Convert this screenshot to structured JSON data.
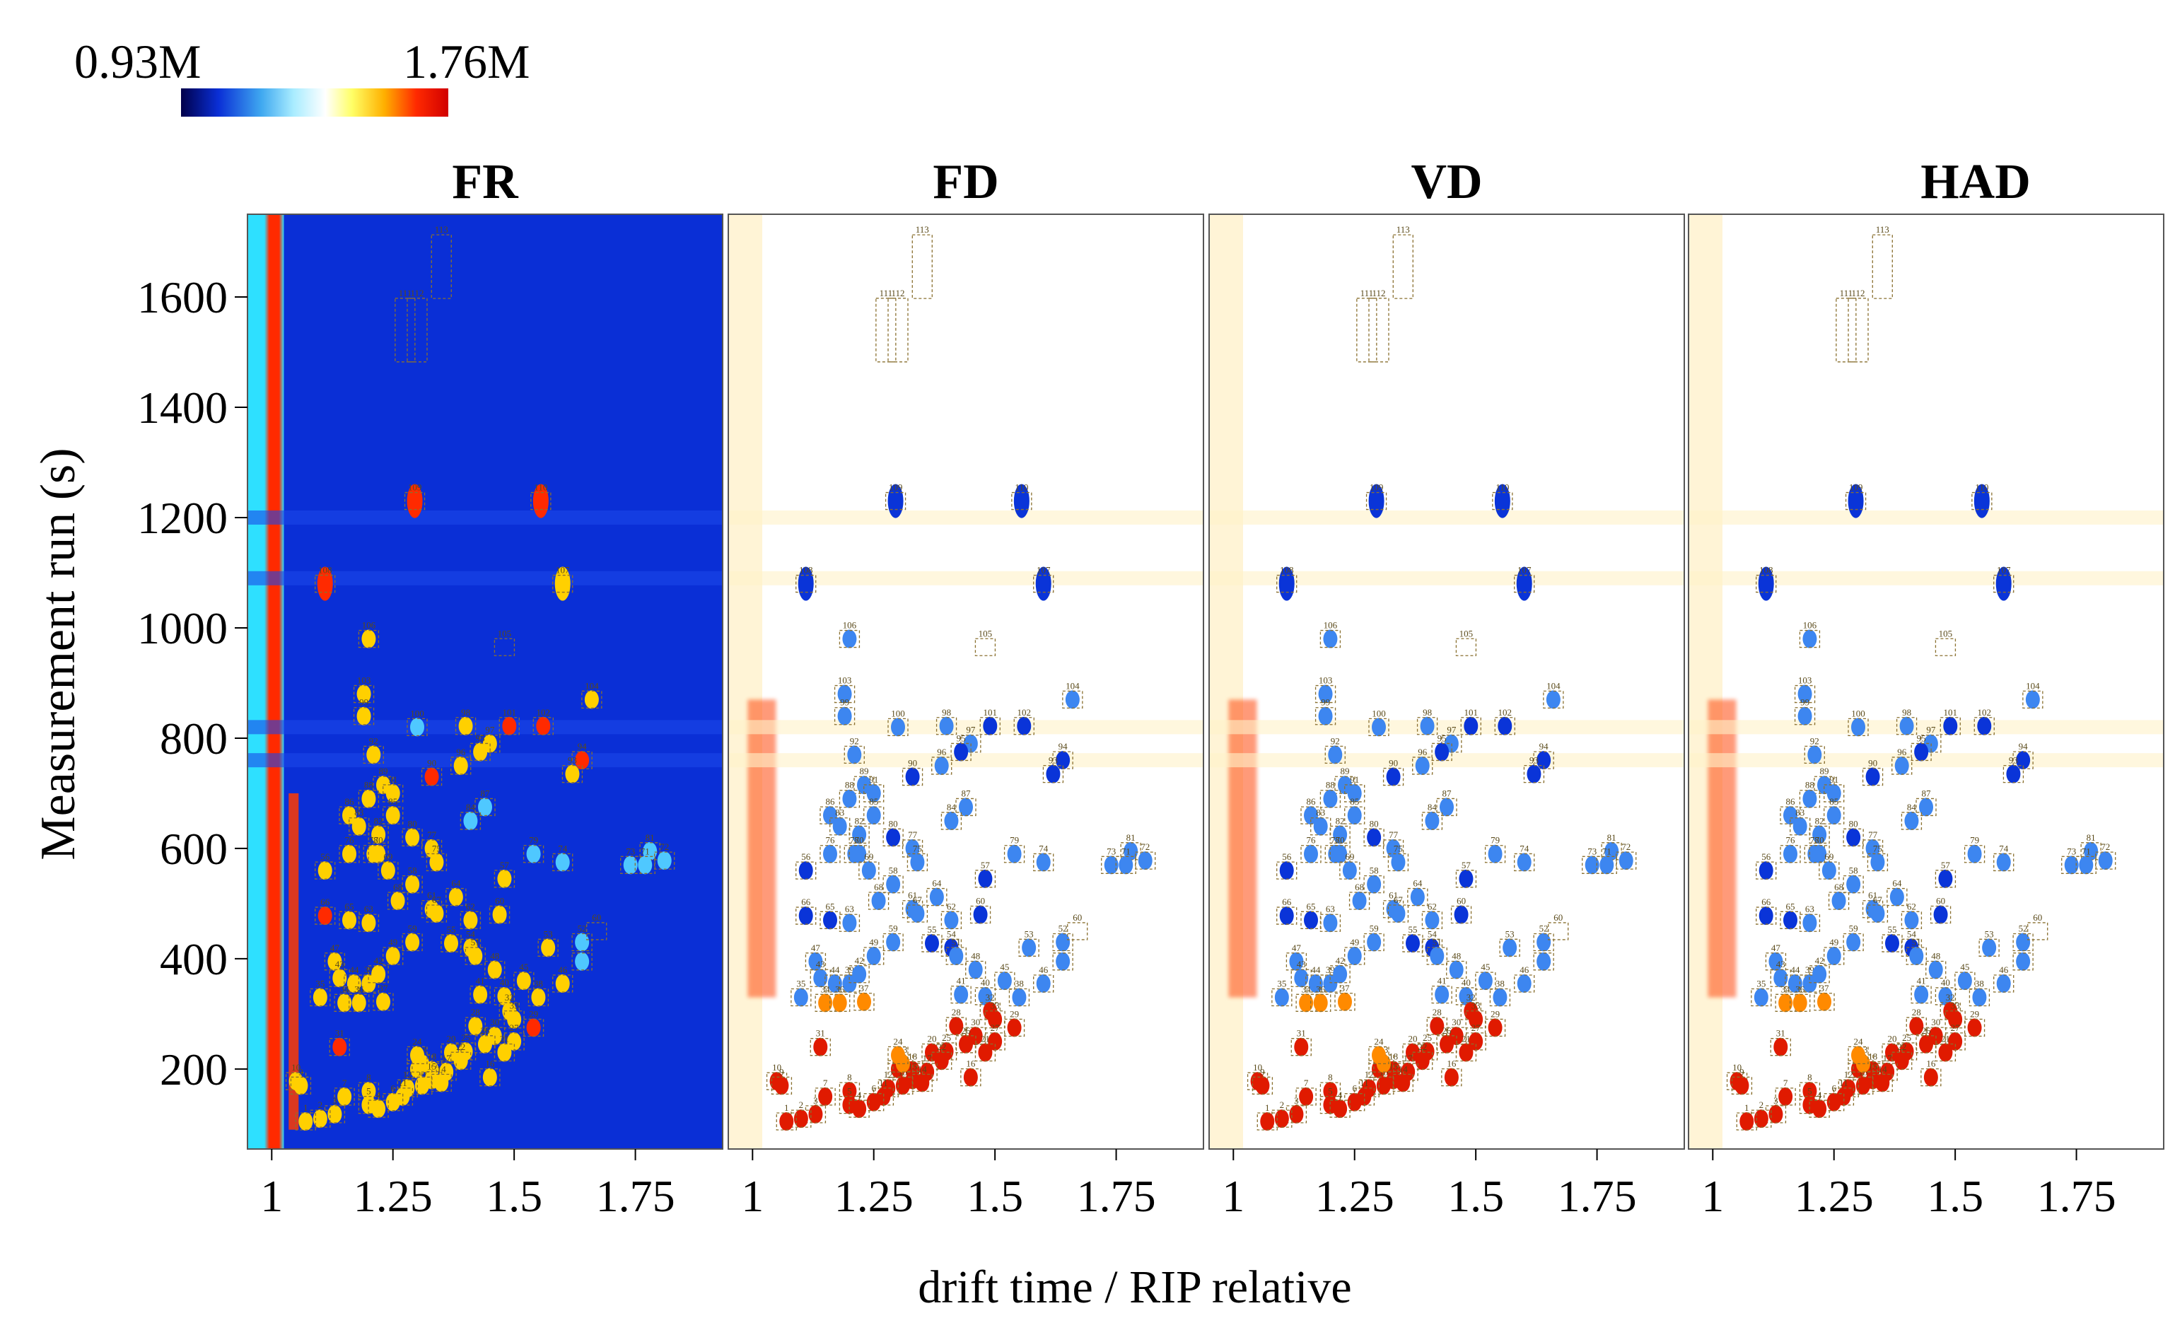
{
  "chart_data": {
    "type": "heatmap",
    "colorbar": {
      "min_label": "0.93M",
      "max_label": "1.76M",
      "colors": [
        "#00004a",
        "#0a2fd6",
        "#3fa8f0",
        "#a8ecff",
        "#ffffff",
        "#ffff66",
        "#ffb000",
        "#ff2a00",
        "#d10000"
      ]
    },
    "ylabel": "Measurement run (s)",
    "xlabel": "drift time / RIP relative",
    "ylim": [
      55,
      1750
    ],
    "xlim": [
      0.95,
      1.93
    ],
    "y_ticks": [
      {
        "value": 200,
        "label": "200"
      },
      {
        "value": 400,
        "label": "400"
      },
      {
        "value": 600,
        "label": "600"
      },
      {
        "value": 800,
        "label": "800"
      },
      {
        "value": 1000,
        "label": "1000"
      },
      {
        "value": 1200,
        "label": "1200"
      },
      {
        "value": 1400,
        "label": "1400"
      },
      {
        "value": 1600,
        "label": "1600"
      }
    ],
    "x_ticks": [
      {
        "value": 1.0,
        "label": "1"
      },
      {
        "value": 1.25,
        "label": "1.25"
      },
      {
        "value": 1.5,
        "label": "1.5"
      },
      {
        "value": 1.75,
        "label": "1.75"
      }
    ],
    "panels": [
      {
        "title": "FR",
        "mode": "absolute",
        "background": "#0a2fd6"
      },
      {
        "title": "FD",
        "mode": "difference",
        "background": "#ffffff"
      },
      {
        "title": "VD",
        "mode": "difference",
        "background": "#ffffff"
      },
      {
        "title": "HAD",
        "mode": "difference",
        "background": "#ffffff"
      }
    ],
    "peaks": [
      {
        "id": "113",
        "x": 1.35,
        "y": 1655,
        "intensity": 0.0
      },
      {
        "id": "111",
        "x": 1.275,
        "y": 1540,
        "intensity": 0.0
      },
      {
        "id": "112",
        "x": 1.3,
        "y": 1540,
        "intensity": 0.0
      },
      {
        "id": "109",
        "x": 1.295,
        "y": 1230,
        "intensity": 1.0
      },
      {
        "id": "110",
        "x": 1.555,
        "y": 1230,
        "intensity": 0.8
      },
      {
        "id": "108",
        "x": 1.11,
        "y": 1080,
        "intensity": 0.9
      },
      {
        "id": "107",
        "x": 1.6,
        "y": 1080,
        "intensity": 0.7
      },
      {
        "id": "106",
        "x": 1.2,
        "y": 980,
        "intensity": 0.6
      },
      {
        "id": "105",
        "x": 1.48,
        "y": 965,
        "intensity": 0.0
      },
      {
        "id": "103",
        "x": 1.19,
        "y": 880,
        "intensity": 0.6
      },
      {
        "id": "104",
        "x": 1.66,
        "y": 870,
        "intensity": 0.6
      },
      {
        "id": "100",
        "x": 1.3,
        "y": 820,
        "intensity": 0.3
      },
      {
        "id": "98",
        "x": 1.4,
        "y": 822,
        "intensity": 0.6
      },
      {
        "id": "101",
        "x": 1.49,
        "y": 822,
        "intensity": 0.9
      },
      {
        "id": "102",
        "x": 1.56,
        "y": 822,
        "intensity": 0.8
      },
      {
        "id": "99",
        "x": 1.19,
        "y": 840,
        "intensity": 0.6
      },
      {
        "id": "97",
        "x": 1.45,
        "y": 790,
        "intensity": 0.5
      },
      {
        "id": "95",
        "x": 1.43,
        "y": 775,
        "intensity": 0.7
      },
      {
        "id": "96",
        "x": 1.39,
        "y": 750,
        "intensity": 0.6
      },
      {
        "id": "94",
        "x": 1.64,
        "y": 760,
        "intensity": 0.95
      },
      {
        "id": "93",
        "x": 1.62,
        "y": 735,
        "intensity": 0.7
      },
      {
        "id": "90",
        "x": 1.33,
        "y": 730,
        "intensity": 0.8
      },
      {
        "id": "92",
        "x": 1.21,
        "y": 770,
        "intensity": 0.6
      },
      {
        "id": "89",
        "x": 1.23,
        "y": 715,
        "intensity": 0.6
      },
      {
        "id": "91",
        "x": 1.25,
        "y": 700,
        "intensity": 0.5
      },
      {
        "id": "88",
        "x": 1.2,
        "y": 690,
        "intensity": 0.6
      },
      {
        "id": "86",
        "x": 1.16,
        "y": 660,
        "intensity": 0.6
      },
      {
        "id": "85",
        "x": 1.25,
        "y": 660,
        "intensity": 0.5
      },
      {
        "id": "87",
        "x": 1.44,
        "y": 675,
        "intensity": 0.4
      },
      {
        "id": "84",
        "x": 1.41,
        "y": 650,
        "intensity": 0.4
      },
      {
        "id": "83",
        "x": 1.18,
        "y": 640,
        "intensity": 0.5
      },
      {
        "id": "82",
        "x": 1.22,
        "y": 625,
        "intensity": 0.5
      },
      {
        "id": "56",
        "x": 1.11,
        "y": 560,
        "intensity": 0.7
      },
      {
        "id": "80",
        "x": 1.29,
        "y": 620,
        "intensity": 0.7
      },
      {
        "id": "77",
        "x": 1.33,
        "y": 600,
        "intensity": 0.5
      },
      {
        "id": "76",
        "x": 1.16,
        "y": 590,
        "intensity": 0.5
      },
      {
        "id": "78",
        "x": 1.21,
        "y": 590,
        "intensity": 0.5
      },
      {
        "id": "75",
        "x": 1.34,
        "y": 575,
        "intensity": 0.5
      },
      {
        "id": "57",
        "x": 1.48,
        "y": 545,
        "intensity": 0.7
      },
      {
        "id": "79",
        "x": 1.54,
        "y": 590,
        "intensity": 0.4
      },
      {
        "id": "74",
        "x": 1.6,
        "y": 575,
        "intensity": 0.4
      },
      {
        "id": "81",
        "x": 1.78,
        "y": 595,
        "intensity": 0.4
      },
      {
        "id": "73",
        "x": 1.74,
        "y": 570,
        "intensity": 0.4
      },
      {
        "id": "71",
        "x": 1.77,
        "y": 570,
        "intensity": 0.4
      },
      {
        "id": "72",
        "x": 1.81,
        "y": 578,
        "intensity": 0.4
      },
      {
        "id": "58",
        "x": 1.29,
        "y": 535,
        "intensity": 0.6
      },
      {
        "id": "68",
        "x": 1.26,
        "y": 505,
        "intensity": 0.6
      },
      {
        "id": "64",
        "x": 1.38,
        "y": 512,
        "intensity": 0.6
      },
      {
        "id": "70",
        "x": 1.22,
        "y": 590,
        "intensity": 0.5
      },
      {
        "id": "69",
        "x": 1.24,
        "y": 560,
        "intensity": 0.5
      },
      {
        "id": "61",
        "x": 1.33,
        "y": 490,
        "intensity": 0.6
      },
      {
        "id": "62",
        "x": 1.41,
        "y": 470,
        "intensity": 0.6
      },
      {
        "id": "60",
        "x": 1.47,
        "y": 480,
        "intensity": 0.7
      },
      {
        "id": "66",
        "x": 1.11,
        "y": 478,
        "intensity": 0.8
      },
      {
        "id": "65",
        "x": 1.16,
        "y": 470,
        "intensity": 0.7
      },
      {
        "id": "63",
        "x": 1.2,
        "y": 465,
        "intensity": 0.6
      },
      {
        "id": "59",
        "x": 1.29,
        "y": 430,
        "intensity": 0.6
      },
      {
        "id": "55",
        "x": 1.37,
        "y": 428,
        "intensity": 0.7
      },
      {
        "id": "54",
        "x": 1.41,
        "y": 420,
        "intensity": 0.7
      },
      {
        "id": "51",
        "x": 1.42,
        "y": 405,
        "intensity": 0.6
      },
      {
        "id": "53",
        "x": 1.57,
        "y": 420,
        "intensity": 0.6
      },
      {
        "id": "50",
        "x": 1.64,
        "y": 395,
        "intensity": 0.4
      },
      {
        "id": "52",
        "x": 1.64,
        "y": 430,
        "intensity": 0.4
      },
      {
        "id": "60b",
        "x": 1.67,
        "y": 450,
        "intensity": 0.0
      },
      {
        "id": "49",
        "x": 1.25,
        "y": 405,
        "intensity": 0.6
      },
      {
        "id": "47",
        "x": 1.13,
        "y": 395,
        "intensity": 0.6
      },
      {
        "id": "48",
        "x": 1.46,
        "y": 380,
        "intensity": 0.6
      },
      {
        "id": "43",
        "x": 1.14,
        "y": 365,
        "intensity": 0.5
      },
      {
        "id": "44",
        "x": 1.17,
        "y": 355,
        "intensity": 0.5
      },
      {
        "id": "39",
        "x": 1.2,
        "y": 355,
        "intensity": 0.5
      },
      {
        "id": "45",
        "x": 1.52,
        "y": 360,
        "intensity": 0.5
      },
      {
        "id": "46",
        "x": 1.6,
        "y": 355,
        "intensity": 0.5
      },
      {
        "id": "41",
        "x": 1.43,
        "y": 335,
        "intensity": 0.6
      },
      {
        "id": "40",
        "x": 1.48,
        "y": 332,
        "intensity": 0.6
      },
      {
        "id": "38",
        "x": 1.55,
        "y": 330,
        "intensity": 0.6
      },
      {
        "id": "35",
        "x": 1.1,
        "y": 330,
        "intensity": 0.5
      },
      {
        "id": "34",
        "x": 1.15,
        "y": 320,
        "intensity": 0.5
      },
      {
        "id": "37",
        "x": 1.23,
        "y": 322,
        "intensity": 0.5
      },
      {
        "id": "36",
        "x": 1.18,
        "y": 320,
        "intensity": 0.5
      },
      {
        "id": "32",
        "x": 1.49,
        "y": 305,
        "intensity": 0.6
      },
      {
        "id": "28",
        "x": 1.42,
        "y": 278,
        "intensity": 0.7
      },
      {
        "id": "29",
        "x": 1.54,
        "y": 275,
        "intensity": 0.8
      },
      {
        "id": "33",
        "x": 1.5,
        "y": 290,
        "intensity": 0.6
      },
      {
        "id": "30",
        "x": 1.46,
        "y": 260,
        "intensity": 0.6
      },
      {
        "id": "27",
        "x": 1.5,
        "y": 250,
        "intensity": 0.6
      },
      {
        "id": "26",
        "x": 1.44,
        "y": 245,
        "intensity": 0.6
      },
      {
        "id": "31",
        "x": 1.14,
        "y": 240,
        "intensity": 0.8
      },
      {
        "id": "25",
        "x": 1.4,
        "y": 232,
        "intensity": 0.7
      },
      {
        "id": "20",
        "x": 1.37,
        "y": 230,
        "intensity": 0.7
      },
      {
        "id": "22",
        "x": 1.39,
        "y": 215,
        "intensity": 0.6
      },
      {
        "id": "19",
        "x": 1.3,
        "y": 200,
        "intensity": 0.6
      },
      {
        "id": "18",
        "x": 1.33,
        "y": 198,
        "intensity": 0.6
      },
      {
        "id": "17",
        "x": 1.36,
        "y": 195,
        "intensity": 0.6
      },
      {
        "id": "16",
        "x": 1.45,
        "y": 185,
        "intensity": 0.6
      },
      {
        "id": "15",
        "x": 1.33,
        "y": 180,
        "intensity": 0.6
      },
      {
        "id": "14",
        "x": 1.35,
        "y": 175,
        "intensity": 0.6
      },
      {
        "id": "13",
        "x": 1.31,
        "y": 170,
        "intensity": 0.6
      },
      {
        "id": "12",
        "x": 1.28,
        "y": 165,
        "intensity": 0.6
      },
      {
        "id": "11",
        "x": 1.27,
        "y": 150,
        "intensity": 0.6
      },
      {
        "id": "10",
        "x": 1.05,
        "y": 178,
        "intensity": 0.7
      },
      {
        "id": "9",
        "x": 1.06,
        "y": 170,
        "intensity": 0.7
      },
      {
        "id": "8",
        "x": 1.2,
        "y": 160,
        "intensity": 0.7
      },
      {
        "id": "7",
        "x": 1.15,
        "y": 150,
        "intensity": 0.6
      },
      {
        "id": "6",
        "x": 1.25,
        "y": 140,
        "intensity": 0.6
      },
      {
        "id": "5",
        "x": 1.2,
        "y": 135,
        "intensity": 0.6
      },
      {
        "id": "4",
        "x": 1.22,
        "y": 128,
        "intensity": 0.6
      },
      {
        "id": "3",
        "x": 1.13,
        "y": 118,
        "intensity": 0.6
      },
      {
        "id": "2",
        "x": 1.1,
        "y": 110,
        "intensity": 0.6
      },
      {
        "id": "1",
        "x": 1.07,
        "y": 105,
        "intensity": 0.6
      },
      {
        "id": "23",
        "x": 1.31,
        "y": 210,
        "intensity": 0.5
      },
      {
        "id": "24",
        "x": 1.3,
        "y": 225,
        "intensity": 0.5
      },
      {
        "id": "21",
        "x": 1.48,
        "y": 230,
        "intensity": 0.6
      },
      {
        "id": "42",
        "x": 1.22,
        "y": 372,
        "intensity": 0.5
      },
      {
        "id": "67",
        "x": 1.34,
        "y": 482,
        "intensity": 0.5
      }
    ]
  }
}
